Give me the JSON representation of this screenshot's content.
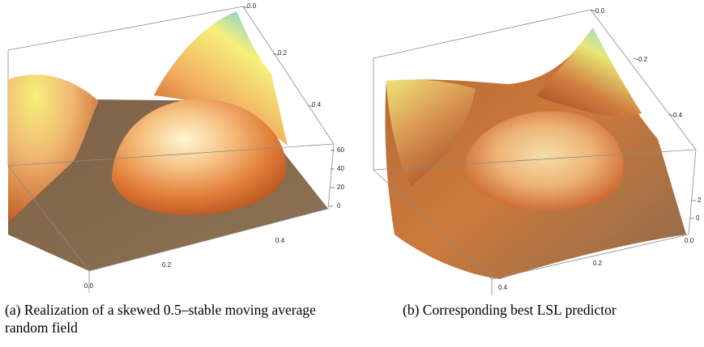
{
  "panel_a": {
    "caption_label": "(a)",
    "caption_text": "Realization of a skewed 0.5–stable moving average random field",
    "axes": {
      "top_ticks": [
        "0.0",
        "0.2",
        "0.4"
      ],
      "right_ticks": [
        "60",
        "40",
        "20",
        "0"
      ],
      "front_ticks": [
        "0.4",
        "0.2",
        "0.0"
      ]
    }
  },
  "panel_b": {
    "caption_label": "(b)",
    "caption_text": "Corresponding best LSL predictor",
    "axes": {
      "top_ticks": [
        "0.0",
        "0.2",
        "0.4"
      ],
      "right_ticks": [
        "2",
        "0"
      ],
      "front_ticks": [
        "0.0",
        "0.2",
        "0.4"
      ]
    }
  },
  "colors": {
    "floor": "#876a4c",
    "peak_low": "#c8561e",
    "peak_mid": "#f3b06a",
    "peak_high": "#f6f07a",
    "peak_top": "#4ca0d8"
  }
}
